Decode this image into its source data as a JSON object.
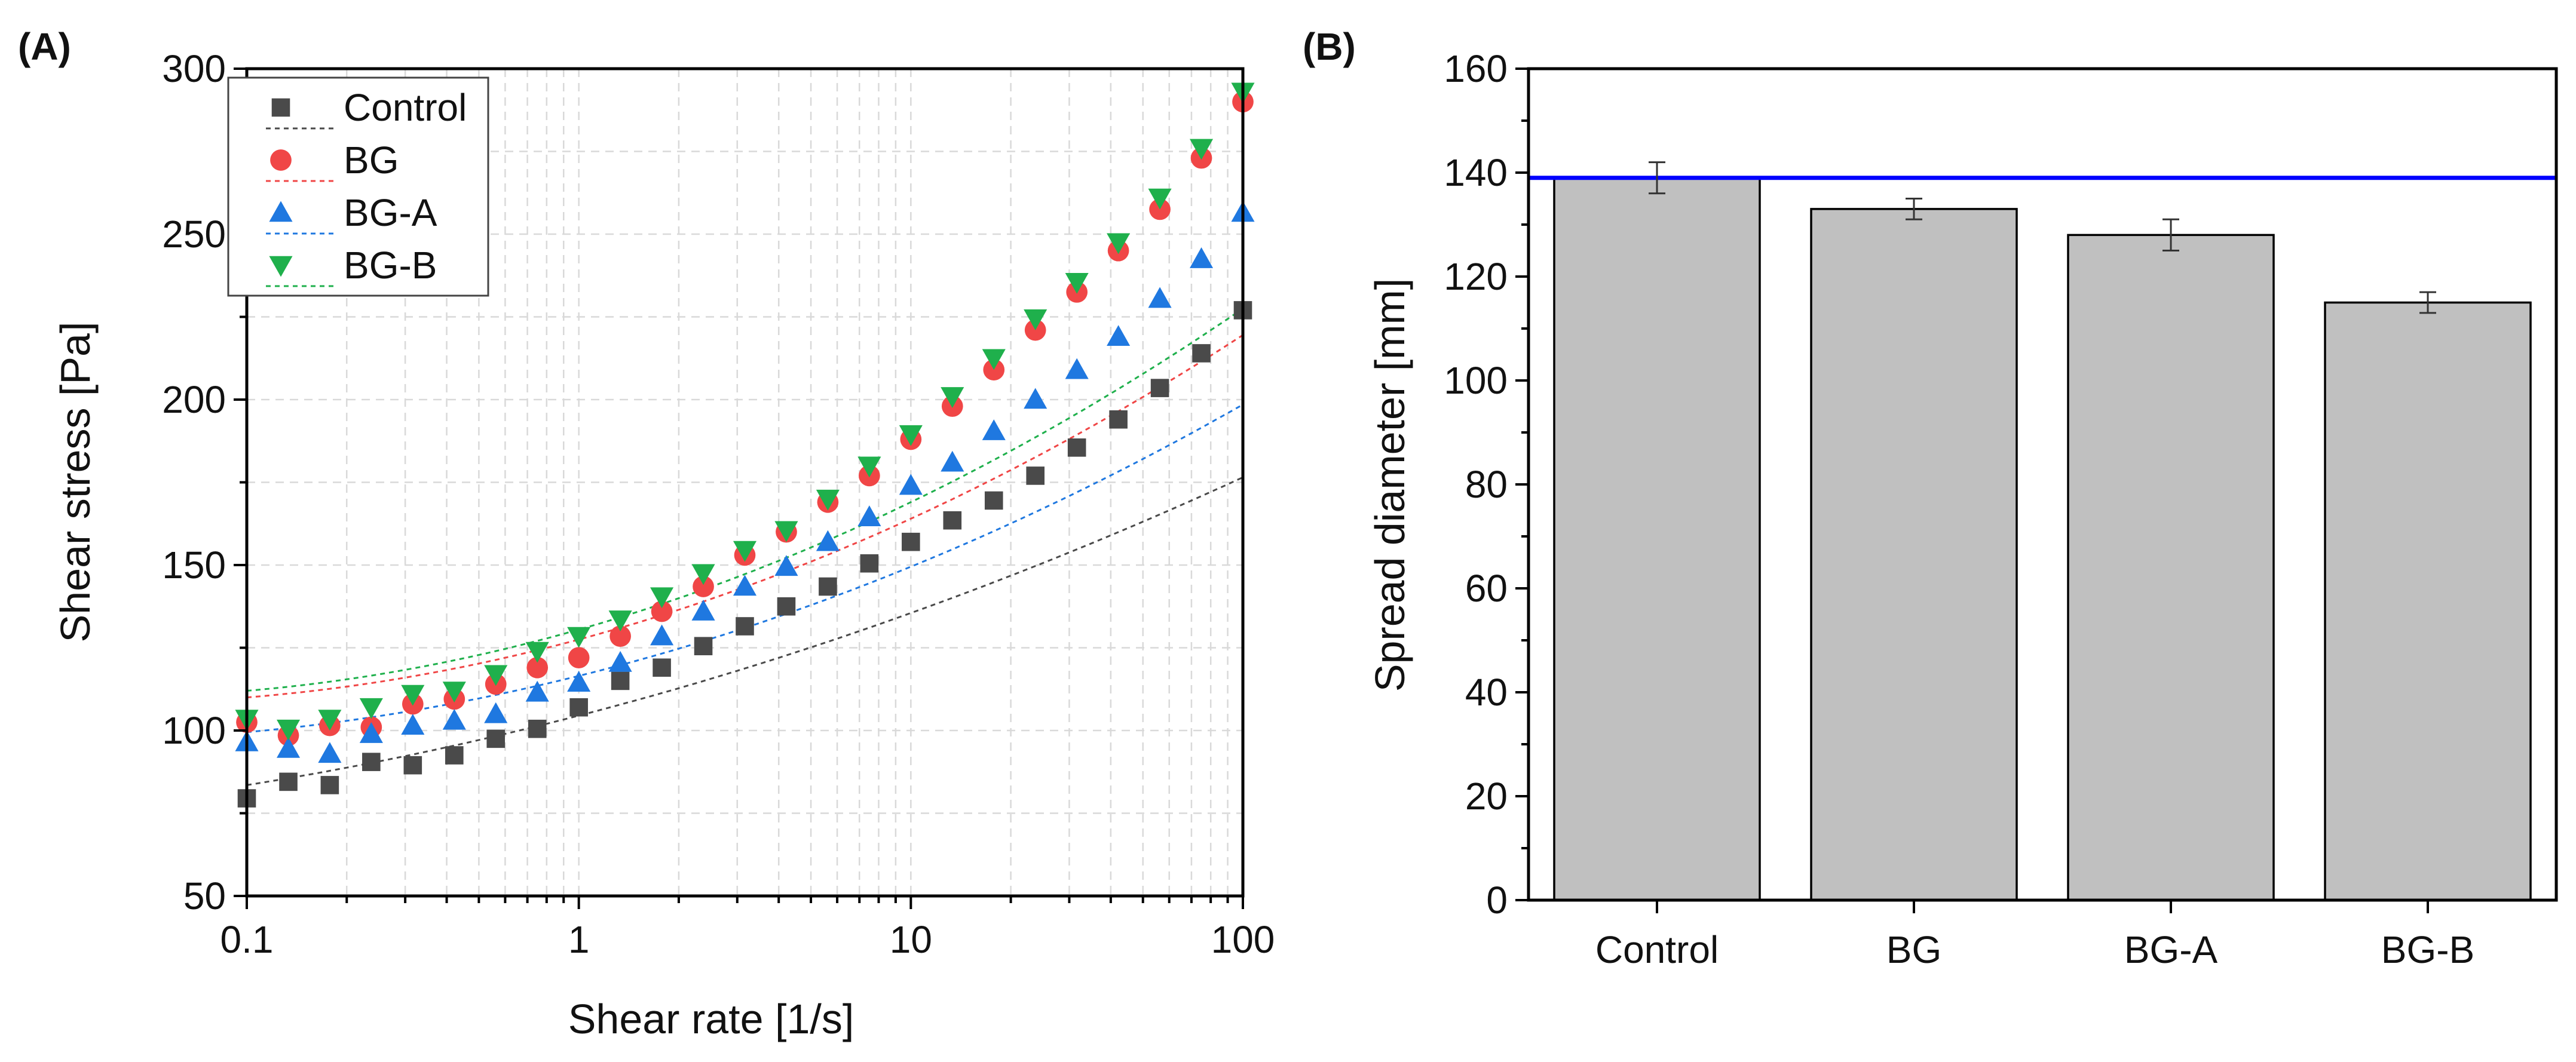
{
  "chart_data": [
    {
      "panel_label": "(A)",
      "type": "scatter",
      "xscale": "log",
      "xlabel": "Shear rate [1/s]",
      "ylabel": "Shear stress [Pa]",
      "xlim": [
        0.1,
        100
      ],
      "ylim": [
        50,
        300
      ],
      "xtick_values": [
        0.1,
        1,
        10,
        100
      ],
      "xticks": [
        "0.1",
        "1",
        "10",
        "100"
      ],
      "ytick_values": [
        50,
        100,
        150,
        200,
        250,
        300
      ],
      "yticks": [
        "50",
        "100",
        "150",
        "200",
        "250",
        "300"
      ],
      "grid": true,
      "legend_position": "top-left",
      "x": [
        0.1,
        0.1334,
        0.1778,
        0.2371,
        0.3162,
        0.4217,
        0.5623,
        0.7499,
        1.0,
        1.3335,
        1.7783,
        2.3714,
        3.1623,
        4.217,
        5.6234,
        7.4989,
        10.0,
        13.335,
        17.783,
        23.714,
        31.623,
        42.17,
        56.234,
        74.989,
        100.0
      ],
      "series": [
        {
          "name": "Control",
          "marker": "square",
          "color": "#4a4a4a",
          "values": [
            79.5,
            84.5,
            83.5,
            90.5,
            89.5,
            92.5,
            97.5,
            100.5,
            107,
            115,
            119,
            125.5,
            131.5,
            137.5,
            143.5,
            150.5,
            157,
            163.5,
            169.5,
            177,
            185.5,
            194,
            203.5,
            214,
            227
          ],
          "fit": {
            "a": 104.5,
            "b": 26.0,
            "c": 5.0
          }
        },
        {
          "name": "BG",
          "marker": "circle",
          "color": "#f04646",
          "values": [
            102.5,
            98.5,
            101.5,
            101,
            108,
            109.5,
            114,
            119,
            122,
            128.5,
            136,
            143.5,
            153,
            160,
            169,
            177,
            188,
            198,
            209,
            221,
            232.5,
            245,
            257.5,
            273,
            290
          ],
          "fit": {
            "a": 127.5,
            "b": 27.0,
            "c": 9.5
          }
        },
        {
          "name": "BG-A",
          "marker": "triangle-up",
          "color": "#1f78e0",
          "values": [
            96.5,
            94.5,
            93,
            99,
            101.5,
            103,
            105,
            111.5,
            114.5,
            120.5,
            128.5,
            136,
            143.5,
            149.5,
            157,
            164.5,
            174,
            181,
            190.5,
            200,
            209,
            219,
            230.5,
            242.5,
            256.5
          ],
          "fit": {
            "a": 116.5,
            "b": 25.0,
            "c": 8.0
          }
        },
        {
          "name": "BG-B",
          "marker": "triangle-down",
          "color": "#1fb04c",
          "values": [
            103.5,
            100.5,
            103.5,
            107,
            111,
            112,
            117,
            124,
            128.5,
            133.5,
            140.5,
            147.5,
            154.5,
            160.5,
            170,
            180,
            189.5,
            201,
            212.5,
            224.5,
            235.5,
            247.5,
            261,
            276,
            293
          ],
          "fit": {
            "a": 130.5,
            "b": 28.5,
            "c": 10.0
          }
        }
      ]
    },
    {
      "panel_label": "(B)",
      "type": "bar",
      "categories": [
        "Control",
        "BG",
        "BG-A",
        "BG-B"
      ],
      "values": [
        139,
        133,
        128,
        115
      ],
      "errors": [
        3,
        2,
        3,
        2
      ],
      "bar_color": "#c0c0c0",
      "reference_line": {
        "value": 139,
        "color": "#0000ff"
      },
      "xlabel": "",
      "ylabel": "Spread diameter [mm]",
      "ylim": [
        0,
        160
      ],
      "ytick_values": [
        0,
        20,
        40,
        60,
        80,
        100,
        120,
        140,
        160
      ],
      "yticks": [
        "0",
        "20",
        "40",
        "60",
        "80",
        "100",
        "120",
        "140",
        "160"
      ]
    }
  ]
}
